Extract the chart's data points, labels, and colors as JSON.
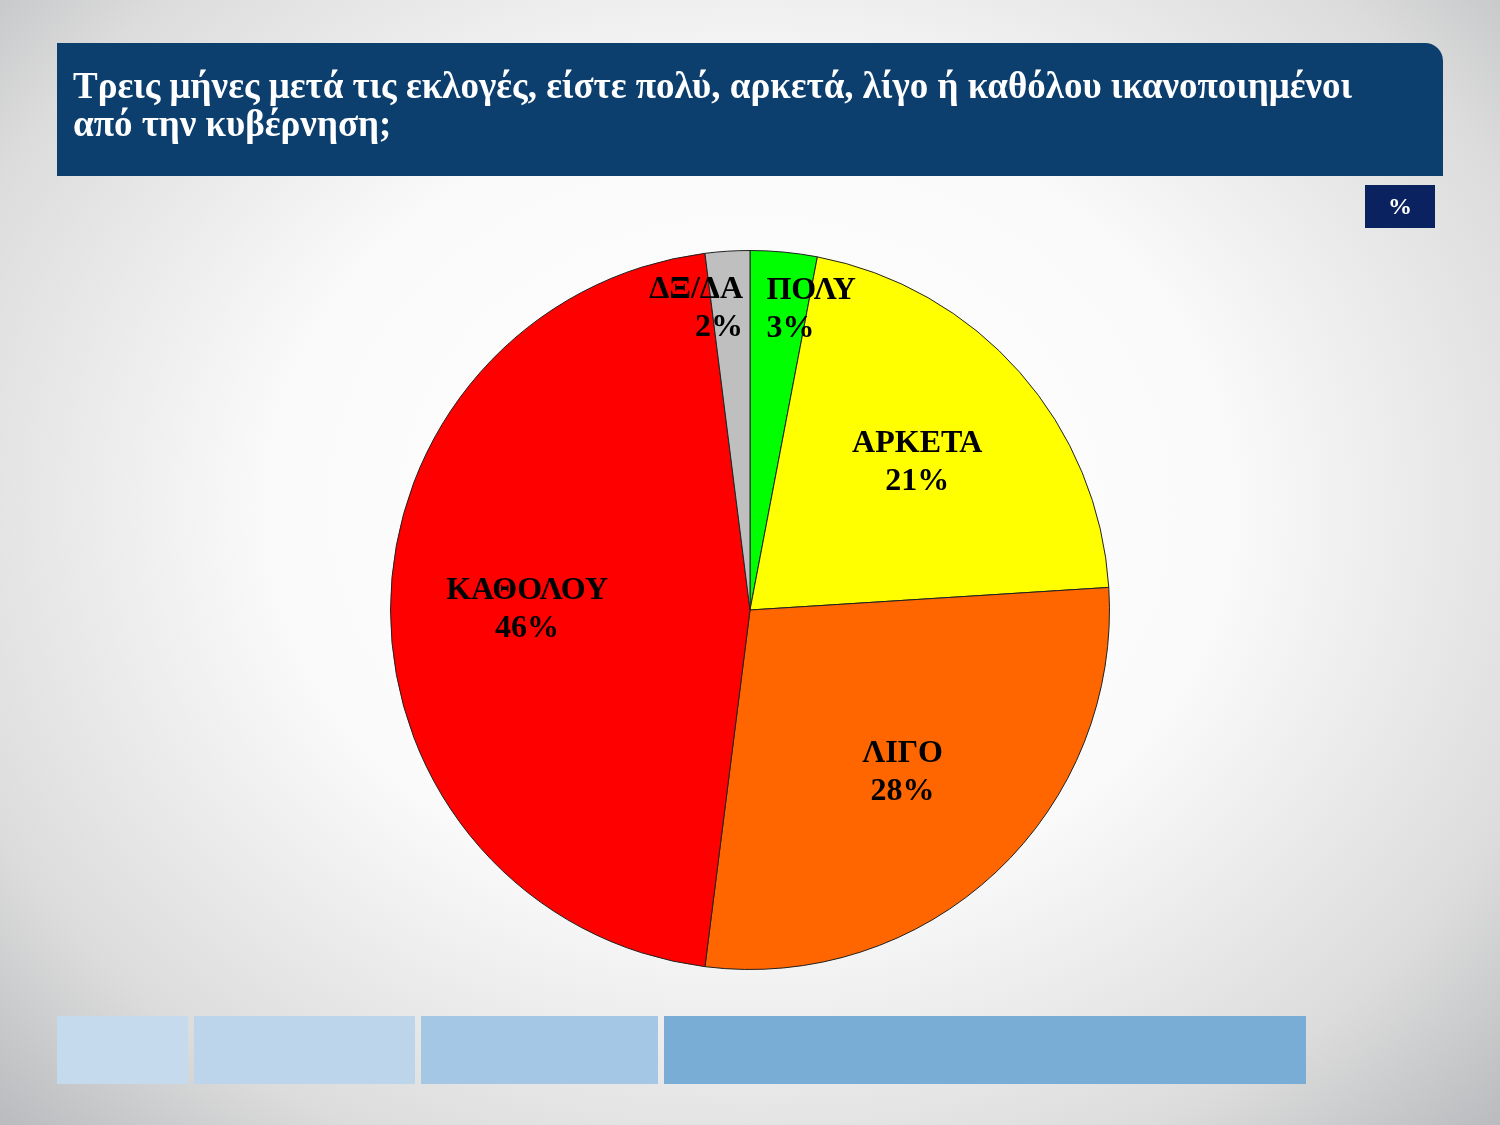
{
  "chart_data": {
    "type": "pie",
    "title": "Τρεις μήνες μετά τις εκλογές, είστε πολύ, αρκετά, λίγο ή καθόλου ικανοποιημένοι από την κυβέρνηση;",
    "categories": [
      "ΠΟΛΥ",
      "ΑΡΚΕΤΑ",
      "ΛΙΓΟ",
      "ΚΑΘΟΛΟΥ",
      "ΔΞ/ΔΑ"
    ],
    "values": [
      3,
      21,
      28,
      46,
      2
    ],
    "colors": [
      "#00ff00",
      "#ffff00",
      "#ff6600",
      "#ff0000",
      "#bfbfbf"
    ],
    "value_labels": [
      "3%",
      "21%",
      "28%",
      "46%",
      "2%"
    ],
    "annotations": [
      "%"
    ]
  }
}
